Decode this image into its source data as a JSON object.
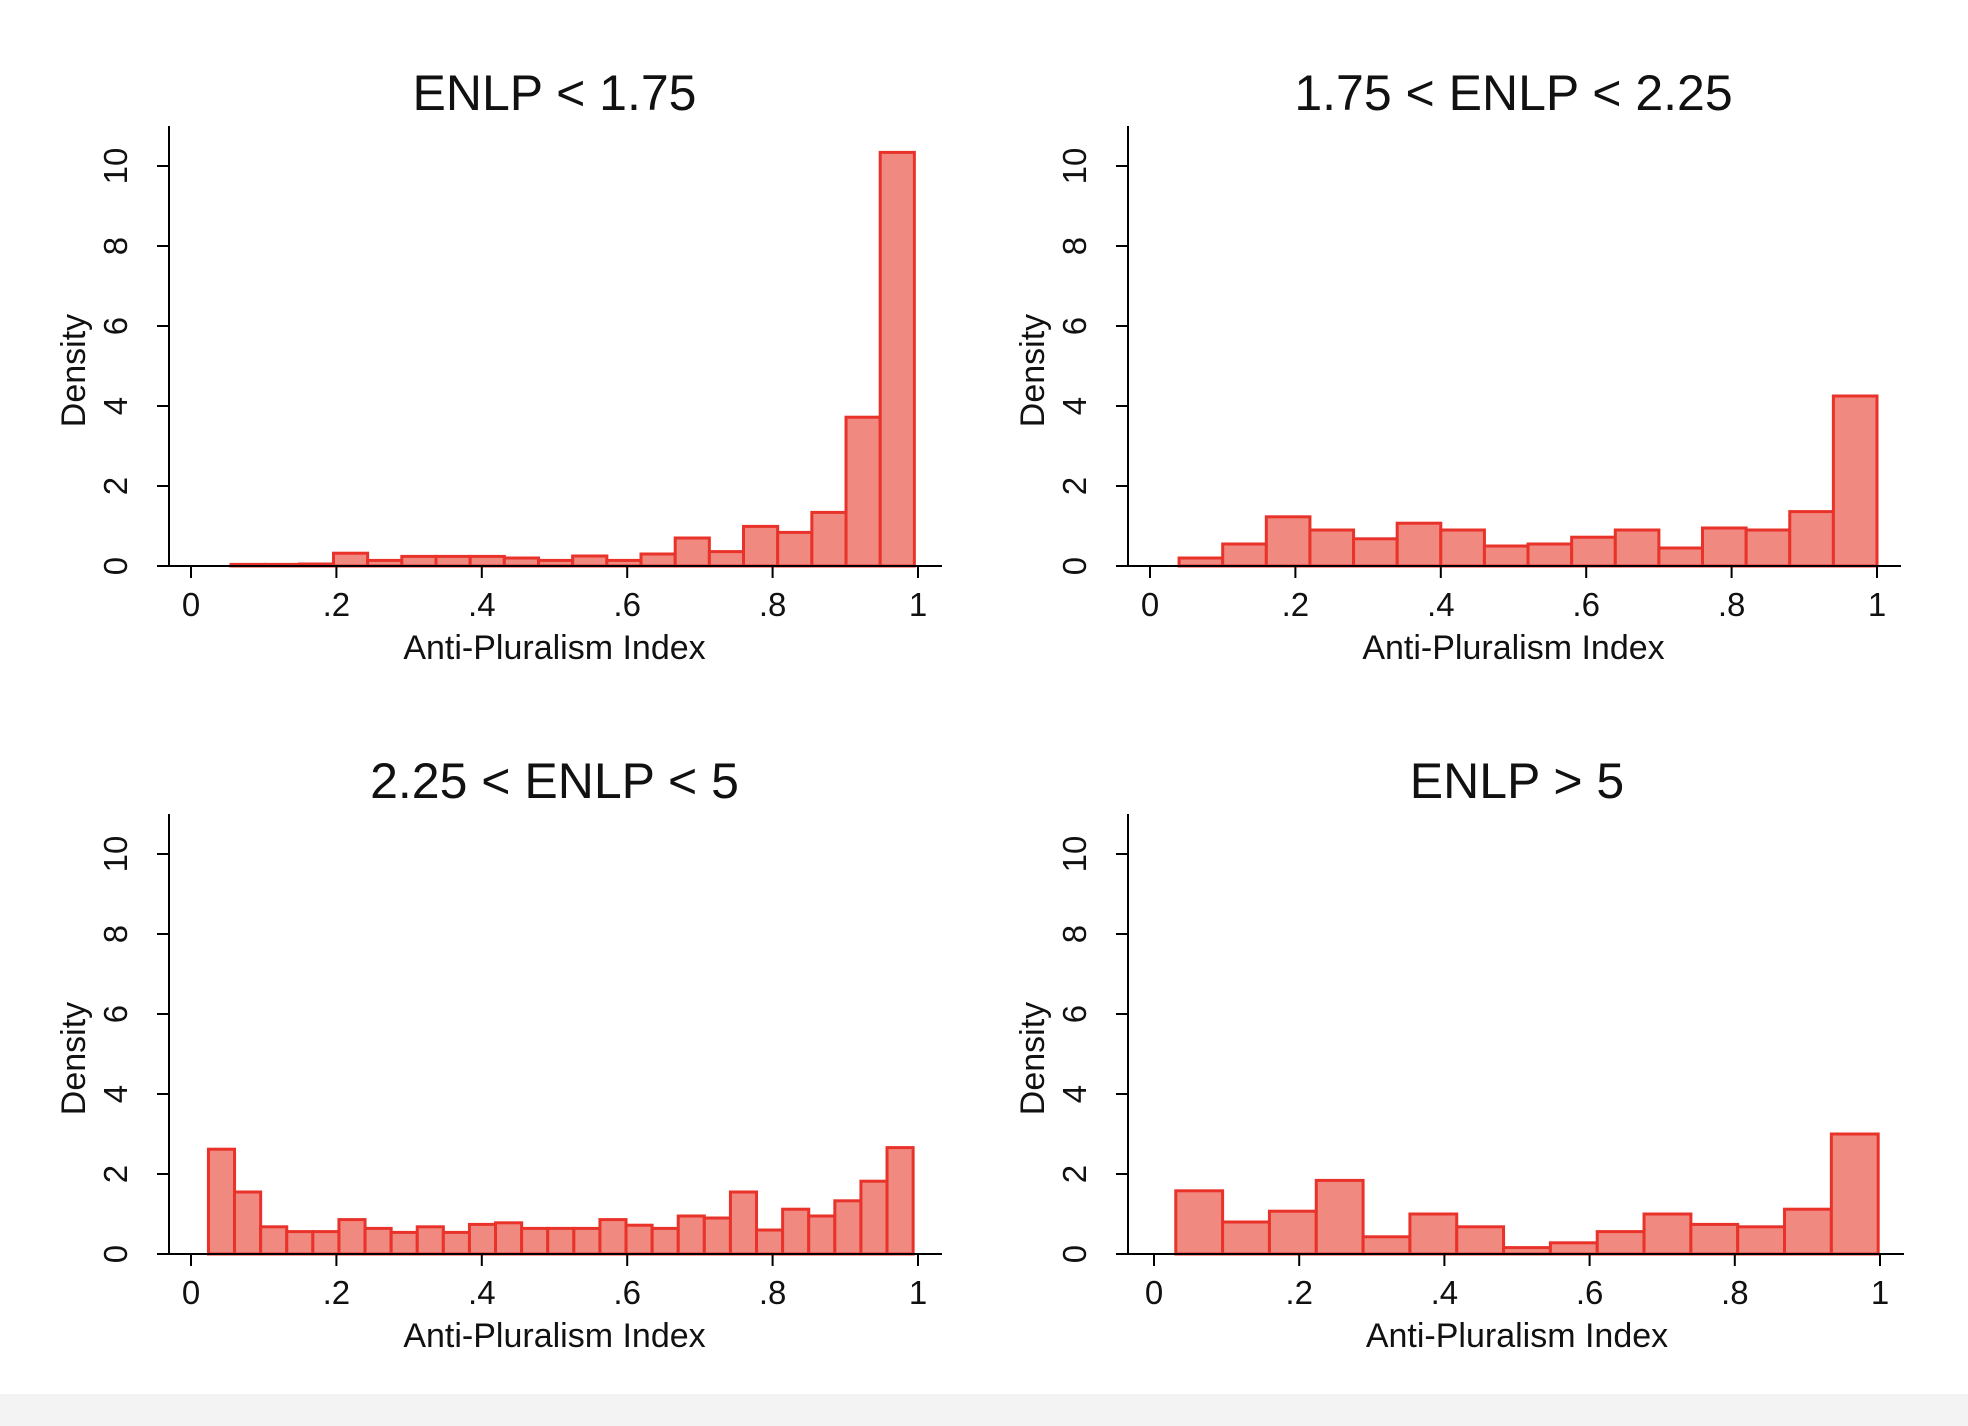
{
  "colors": {
    "bar_fill": "#f08a80",
    "bar_stroke": "#e8322a",
    "axis": "#000000",
    "background": "#ffffff"
  },
  "chart_data": [
    {
      "type": "bar",
      "title": "ENLP < 1.75",
      "xlabel": "Anti-Pluralism Index",
      "ylabel": "Density",
      "xlim": [
        0,
        1
      ],
      "ylim": [
        0,
        11
      ],
      "x_ticks": [
        "0",
        ".2",
        ".4",
        ".6",
        ".8",
        "1"
      ],
      "y_ticks": [
        "0",
        "2",
        "4",
        "6",
        "8",
        "10"
      ],
      "grid": false,
      "bins": [
        {
          "x0": 0.055,
          "x1": 0.102,
          "density": 0.04
        },
        {
          "x0": 0.102,
          "x1": 0.149,
          "density": 0.04
        },
        {
          "x0": 0.149,
          "x1": 0.196,
          "density": 0.05
        },
        {
          "x0": 0.196,
          "x1": 0.243,
          "density": 0.32
        },
        {
          "x0": 0.243,
          "x1": 0.29,
          "density": 0.14
        },
        {
          "x0": 0.29,
          "x1": 0.337,
          "density": 0.24
        },
        {
          "x0": 0.337,
          "x1": 0.384,
          "density": 0.24
        },
        {
          "x0": 0.384,
          "x1": 0.431,
          "density": 0.24
        },
        {
          "x0": 0.431,
          "x1": 0.478,
          "density": 0.2
        },
        {
          "x0": 0.478,
          "x1": 0.525,
          "density": 0.14
        },
        {
          "x0": 0.525,
          "x1": 0.572,
          "density": 0.25
        },
        {
          "x0": 0.572,
          "x1": 0.619,
          "density": 0.14
        },
        {
          "x0": 0.619,
          "x1": 0.666,
          "density": 0.3
        },
        {
          "x0": 0.666,
          "x1": 0.713,
          "density": 0.7
        },
        {
          "x0": 0.713,
          "x1": 0.76,
          "density": 0.36
        },
        {
          "x0": 0.76,
          "x1": 0.807,
          "density": 0.99
        },
        {
          "x0": 0.807,
          "x1": 0.854,
          "density": 0.84
        },
        {
          "x0": 0.854,
          "x1": 0.901,
          "density": 1.34
        },
        {
          "x0": 0.901,
          "x1": 0.948,
          "density": 3.72
        },
        {
          "x0": 0.948,
          "x1": 0.995,
          "density": 10.34
        }
      ]
    },
    {
      "type": "bar",
      "title": "1.75 < ENLP < 2.25",
      "xlabel": "Anti-Pluralism Index",
      "ylabel": "Density",
      "xlim": [
        0,
        1
      ],
      "ylim": [
        0,
        11
      ],
      "x_ticks": [
        "0",
        ".2",
        ".4",
        ".6",
        ".8",
        "1"
      ],
      "y_ticks": [
        "0",
        "2",
        "4",
        "6",
        "8",
        "10"
      ],
      "grid": false,
      "bins": [
        {
          "x0": 0.04,
          "x1": 0.1,
          "density": 0.2
        },
        {
          "x0": 0.1,
          "x1": 0.16,
          "density": 0.55
        },
        {
          "x0": 0.16,
          "x1": 0.22,
          "density": 1.23
        },
        {
          "x0": 0.22,
          "x1": 0.28,
          "density": 0.9
        },
        {
          "x0": 0.28,
          "x1": 0.34,
          "density": 0.68
        },
        {
          "x0": 0.34,
          "x1": 0.4,
          "density": 1.07
        },
        {
          "x0": 0.4,
          "x1": 0.46,
          "density": 0.9
        },
        {
          "x0": 0.46,
          "x1": 0.52,
          "density": 0.5
        },
        {
          "x0": 0.52,
          "x1": 0.58,
          "density": 0.55
        },
        {
          "x0": 0.58,
          "x1": 0.64,
          "density": 0.72
        },
        {
          "x0": 0.64,
          "x1": 0.7,
          "density": 0.9
        },
        {
          "x0": 0.7,
          "x1": 0.76,
          "density": 0.45
        },
        {
          "x0": 0.76,
          "x1": 0.82,
          "density": 0.95
        },
        {
          "x0": 0.82,
          "x1": 0.88,
          "density": 0.9
        },
        {
          "x0": 0.88,
          "x1": 0.94,
          "density": 1.36
        },
        {
          "x0": 0.94,
          "x1": 1.0,
          "density": 4.25
        }
      ]
    },
    {
      "type": "bar",
      "title": "2.25 < ENLP < 5",
      "xlabel": "Anti-Pluralism Index",
      "ylabel": "Density",
      "xlim": [
        0,
        1
      ],
      "ylim": [
        0,
        11
      ],
      "x_ticks": [
        "0",
        ".2",
        ".4",
        ".6",
        ".8",
        "1"
      ],
      "y_ticks": [
        "0",
        "2",
        "4",
        "6",
        "8",
        "10"
      ],
      "grid": false,
      "bins": [
        {
          "x0": 0.024,
          "x1": 0.0599,
          "density": 2.62
        },
        {
          "x0": 0.0599,
          "x1": 0.0958,
          "density": 1.55
        },
        {
          "x0": 0.0958,
          "x1": 0.1317,
          "density": 0.68
        },
        {
          "x0": 0.1317,
          "x1": 0.1676,
          "density": 0.56
        },
        {
          "x0": 0.1676,
          "x1": 0.2035,
          "density": 0.56
        },
        {
          "x0": 0.2035,
          "x1": 0.2394,
          "density": 0.86
        },
        {
          "x0": 0.2394,
          "x1": 0.2753,
          "density": 0.64
        },
        {
          "x0": 0.2753,
          "x1": 0.3112,
          "density": 0.54
        },
        {
          "x0": 0.3112,
          "x1": 0.3471,
          "density": 0.68
        },
        {
          "x0": 0.3471,
          "x1": 0.383,
          "density": 0.54
        },
        {
          "x0": 0.383,
          "x1": 0.4189,
          "density": 0.74
        },
        {
          "x0": 0.4189,
          "x1": 0.4548,
          "density": 0.78
        },
        {
          "x0": 0.4548,
          "x1": 0.4907,
          "density": 0.64
        },
        {
          "x0": 0.4907,
          "x1": 0.5266,
          "density": 0.64
        },
        {
          "x0": 0.5266,
          "x1": 0.5625,
          "density": 0.64
        },
        {
          "x0": 0.5625,
          "x1": 0.5984,
          "density": 0.86
        },
        {
          "x0": 0.5984,
          "x1": 0.6343,
          "density": 0.72
        },
        {
          "x0": 0.6343,
          "x1": 0.6702,
          "density": 0.64
        },
        {
          "x0": 0.6702,
          "x1": 0.7061,
          "density": 0.95
        },
        {
          "x0": 0.7061,
          "x1": 0.742,
          "density": 0.9
        },
        {
          "x0": 0.742,
          "x1": 0.7779,
          "density": 1.55
        },
        {
          "x0": 0.7779,
          "x1": 0.8138,
          "density": 0.6
        },
        {
          "x0": 0.8138,
          "x1": 0.8497,
          "density": 1.12
        },
        {
          "x0": 0.8497,
          "x1": 0.8856,
          "density": 0.95
        },
        {
          "x0": 0.8856,
          "x1": 0.9215,
          "density": 1.33
        },
        {
          "x0": 0.9215,
          "x1": 0.9574,
          "density": 1.82
        },
        {
          "x0": 0.9574,
          "x1": 0.9933,
          "density": 2.66
        }
      ]
    },
    {
      "type": "bar",
      "title": "ENLP > 5",
      "xlabel": "Anti-Pluralism Index",
      "ylabel": "Density",
      "xlim": [
        0,
        1
      ],
      "ylim": [
        0,
        11
      ],
      "x_ticks": [
        "0",
        ".2",
        ".4",
        ".6",
        ".8",
        "1"
      ],
      "y_ticks": [
        "0",
        "2",
        "4",
        "6",
        "8",
        "10"
      ],
      "grid": false,
      "bins": [
        {
          "x0": 0.03,
          "x1": 0.0945,
          "density": 1.58
        },
        {
          "x0": 0.0945,
          "x1": 0.159,
          "density": 0.8
        },
        {
          "x0": 0.159,
          "x1": 0.2235,
          "density": 1.07
        },
        {
          "x0": 0.2235,
          "x1": 0.288,
          "density": 1.84
        },
        {
          "x0": 0.288,
          "x1": 0.3525,
          "density": 0.43
        },
        {
          "x0": 0.3525,
          "x1": 0.417,
          "density": 1.0
        },
        {
          "x0": 0.417,
          "x1": 0.4815,
          "density": 0.68
        },
        {
          "x0": 0.4815,
          "x1": 0.546,
          "density": 0.16
        },
        {
          "x0": 0.546,
          "x1": 0.6105,
          "density": 0.28
        },
        {
          "x0": 0.6105,
          "x1": 0.675,
          "density": 0.56
        },
        {
          "x0": 0.675,
          "x1": 0.7395,
          "density": 1.0
        },
        {
          "x0": 0.7395,
          "x1": 0.804,
          "density": 0.74
        },
        {
          "x0": 0.804,
          "x1": 0.8685,
          "density": 0.68
        },
        {
          "x0": 0.8685,
          "x1": 0.933,
          "density": 1.12
        },
        {
          "x0": 0.933,
          "x1": 0.9975,
          "density": 3.0
        }
      ]
    }
  ]
}
